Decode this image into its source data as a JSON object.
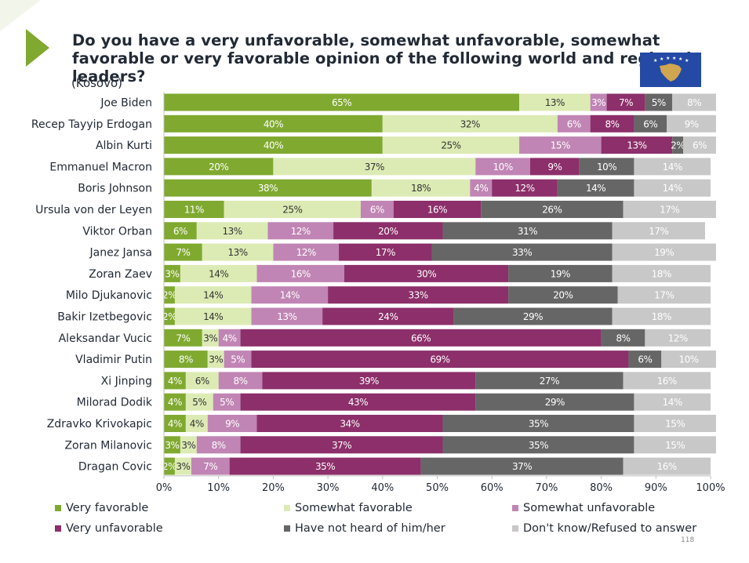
{
  "page": {
    "title": "Do you have a very unfavorable, somewhat unfavorable, somewhat favorable or very favorable opinion of the following world and regional leaders?",
    "subtitle": "(Kosovo)",
    "page_number": "118",
    "flag_icon": "kosovo-flag-icon",
    "decor_icon": "green-triangle-icon"
  },
  "colors": {
    "very_favorable": "#80a930",
    "somewhat_favorable": "#dcebb4",
    "somewhat_unfavorable": "#c085b4",
    "very_unfavorable": "#8c2f6a",
    "not_heard": "#666666",
    "dont_know": "#c8c8c8",
    "accent_triangle": "#80a930",
    "flag_blue": "#244aa5",
    "flag_gold": "#d0a650"
  },
  "chart_data": {
    "type": "bar",
    "orientation": "horizontal",
    "stacked": true,
    "title": "Do you have a very unfavorable, somewhat unfavorable, somewhat favorable or very favorable opinion of the following world and regional leaders?",
    "subtitle": "(Kosovo)",
    "xlim": [
      0,
      100
    ],
    "x_ticks": [
      "0%",
      "10%",
      "20%",
      "30%",
      "40%",
      "50%",
      "60%",
      "70%",
      "80%",
      "90%",
      "100%"
    ],
    "legend_position": "bottom",
    "categories": [
      "Joe Biden",
      "Recep Tayyip Erdogan",
      "Albin Kurti",
      "Emmanuel Macron",
      "Boris Johnson",
      "Ursula von der Leyen",
      "Viktor Orban",
      "Janez Jansa",
      "Zoran Zaev",
      "Milo Djukanovic",
      "Bakir Izetbegovic",
      "Aleksandar Vucic",
      "Vladimir Putin",
      "Xi Jinping",
      "Milorad Dodik",
      "Zdravko Krivokapic",
      "Zoran Milanovic",
      "Dragan Covic"
    ],
    "series": [
      {
        "name": "Very favorable",
        "color_key": "very_favorable",
        "values": [
          65,
          40,
          40,
          20,
          38,
          11,
          6,
          7,
          3,
          2,
          2,
          7,
          8,
          4,
          4,
          4,
          3,
          2
        ]
      },
      {
        "name": "Somewhat favorable",
        "color_key": "somewhat_favorable",
        "values": [
          13,
          32,
          25,
          37,
          18,
          25,
          13,
          13,
          14,
          14,
          14,
          3,
          3,
          6,
          5,
          4,
          3,
          3
        ]
      },
      {
        "name": "Somewhat unfavorable",
        "color_key": "somewhat_unfavorable",
        "values": [
          3,
          6,
          15,
          10,
          4,
          6,
          12,
          12,
          16,
          14,
          13,
          4,
          5,
          8,
          5,
          9,
          8,
          7
        ]
      },
      {
        "name": "Very unfavorable",
        "color_key": "very_unfavorable",
        "values": [
          7,
          8,
          13,
          9,
          12,
          16,
          20,
          17,
          30,
          33,
          24,
          66,
          69,
          39,
          43,
          34,
          37,
          35
        ]
      },
      {
        "name": "Have not heard of him/her",
        "color_key": "not_heard",
        "values": [
          5,
          6,
          2,
          10,
          14,
          26,
          31,
          33,
          19,
          20,
          29,
          8,
          6,
          27,
          29,
          35,
          35,
          37
        ]
      },
      {
        "name": "Don't know/Refused to answer",
        "color_key": "dont_know",
        "values": [
          8,
          9,
          6,
          14,
          14,
          17,
          17,
          19,
          18,
          17,
          18,
          12,
          10,
          16,
          14,
          15,
          15,
          16
        ]
      }
    ]
  }
}
